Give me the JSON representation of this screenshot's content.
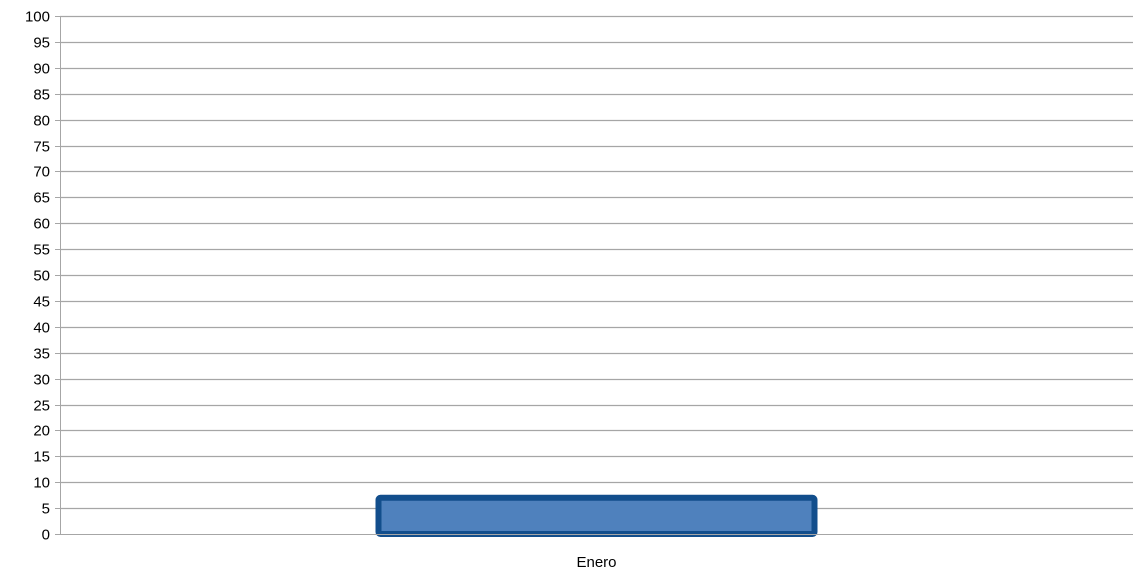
{
  "chart_data": {
    "type": "bar",
    "categories": [
      "Enero"
    ],
    "series": [
      {
        "values": [
          7
        ]
      }
    ],
    "ylim": [
      0,
      100
    ],
    "ytick_step": 5,
    "yticks": [
      "0",
      "5",
      "10",
      "15",
      "20",
      "25",
      "30",
      "35",
      "40",
      "45",
      "50",
      "55",
      "60",
      "65",
      "70",
      "75",
      "80",
      "85",
      "90",
      "95",
      "100"
    ],
    "grid": true,
    "legend": "none",
    "colors": {
      "bar_fill": "#4f81bd",
      "bar_stroke": "#124e8c",
      "grid": "#a6a6a6",
      "axis": "#a6a6a6"
    }
  }
}
